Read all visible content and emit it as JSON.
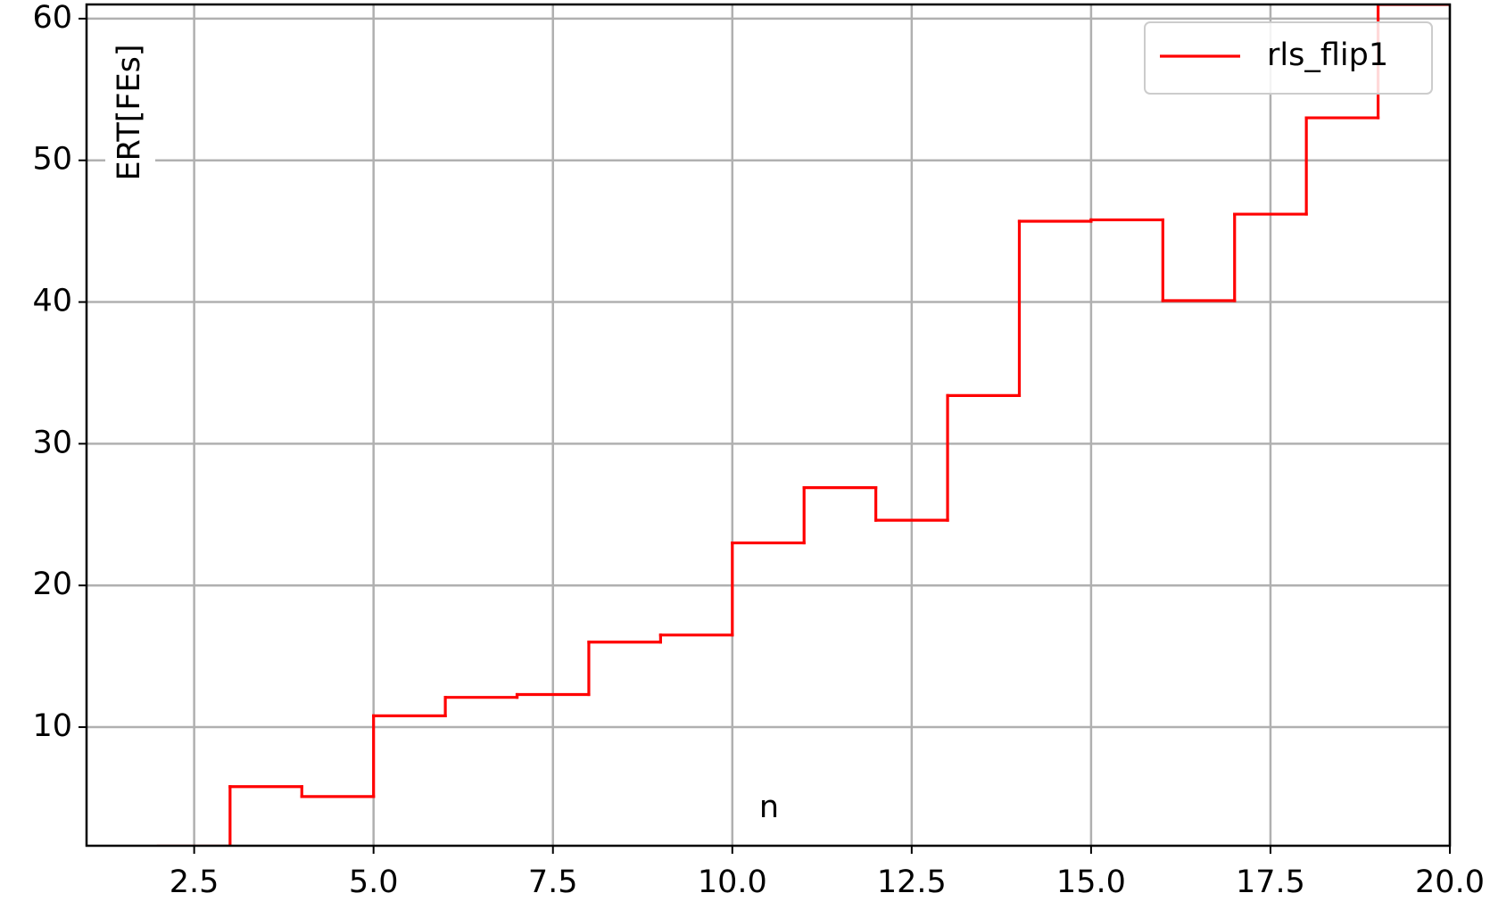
{
  "chart_data": {
    "type": "step",
    "x_label": "n",
    "y_label": "ERT[FEs]",
    "x": [
      2,
      3,
      4,
      5,
      6,
      7,
      8,
      9,
      10,
      11,
      12,
      13,
      14,
      15,
      16,
      17,
      18,
      19,
      20
    ],
    "series": [
      {
        "name": "rls_flip1",
        "color": "#ff0000",
        "values": [
          1.6,
          5.8,
          5.1,
          10.8,
          12.1,
          12.3,
          16.0,
          16.5,
          23.0,
          26.9,
          24.6,
          33.4,
          45.7,
          45.8,
          40.1,
          46.2,
          53.0,
          61.0,
          61.0
        ]
      }
    ],
    "xlim": [
      1.0,
      20.0
    ],
    "ylim": [
      1.63,
      61.0
    ],
    "xticks": [
      2.5,
      {
        "value": 5,
        "label": "5.0"
      },
      7.5,
      {
        "value": 10,
        "label": "10.0"
      },
      12.5,
      {
        "value": 15,
        "label": "15.0"
      },
      17.5,
      {
        "value": 20,
        "label": "20.0"
      }
    ],
    "yticks": [
      10,
      20,
      30,
      40,
      50,
      60
    ],
    "grid": true,
    "legend": "upper right"
  }
}
